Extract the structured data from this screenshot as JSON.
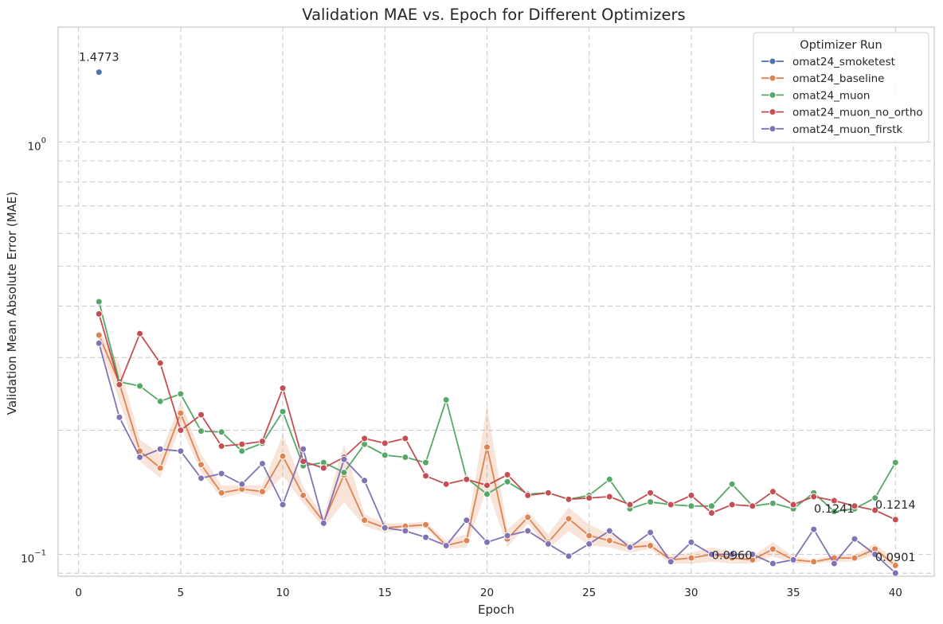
{
  "chart_data": {
    "type": "line",
    "title": "Validation MAE vs. Epoch for Different Optimizers",
    "xlabel": "Epoch",
    "ylabel": "Validation Mean Absolute Error (MAE)",
    "xlim": [
      -1,
      41.9
    ],
    "ylim": [
      0.0885,
      1.9
    ],
    "yscale": "log",
    "grid": true,
    "x_ticks": [
      0,
      5,
      10,
      15,
      20,
      25,
      30,
      35,
      40
    ],
    "y_major_ticks": [
      {
        "value": 0.1,
        "base": "10",
        "exp": "−1"
      },
      {
        "value": 1,
        "base": "10",
        "exp": "0"
      }
    ],
    "y_minor_grid": [
      0.09,
      0.2,
      0.3,
      0.4,
      0.5,
      0.6,
      0.7,
      0.8,
      0.9
    ],
    "legend": {
      "title": "Optimizer Run",
      "position": "top-right"
    },
    "series": [
      {
        "name": "omat24_smoketest",
        "color": "#4c72b0",
        "x": [
          1
        ],
        "y": [
          1.4773
        ]
      },
      {
        "name": "omat24_baseline",
        "color": "#dd8452",
        "x": [
          1,
          2,
          3,
          4,
          5,
          6,
          7,
          8,
          9,
          10,
          11,
          12,
          13,
          14,
          15,
          16,
          17,
          18,
          19,
          20,
          21,
          22,
          23,
          24,
          25,
          26,
          27,
          28,
          29,
          30,
          31,
          32,
          33,
          34,
          35,
          36,
          37,
          38,
          39,
          40
        ],
        "y": [
          0.34,
          0.26,
          0.178,
          0.162,
          0.22,
          0.165,
          0.141,
          0.144,
          0.142,
          0.173,
          0.139,
          0.12,
          0.156,
          0.121,
          0.116,
          0.117,
          0.118,
          0.105,
          0.108,
          0.182,
          0.109,
          0.123,
          0.107,
          0.122,
          0.111,
          0.108,
          0.104,
          0.105,
          0.097,
          0.098,
          0.1,
          0.098,
          0.097,
          0.103,
          0.097,
          0.096,
          0.098,
          0.098,
          0.103,
          0.094
        ],
        "band_upper": [
          0.35,
          0.29,
          0.19,
          0.175,
          0.235,
          0.175,
          0.147,
          0.147,
          0.147,
          0.195,
          0.146,
          0.124,
          0.185,
          0.125,
          0.119,
          0.119,
          0.12,
          0.108,
          0.112,
          0.23,
          0.115,
          0.127,
          0.112,
          0.13,
          0.118,
          0.112,
          0.107,
          0.108,
          0.099,
          0.101,
          0.104,
          0.101,
          0.099,
          0.107,
          0.099,
          0.097,
          0.1,
          0.1,
          0.106,
          0.097
        ],
        "band_lower": [
          0.325,
          0.235,
          0.168,
          0.153,
          0.205,
          0.158,
          0.137,
          0.141,
          0.138,
          0.155,
          0.133,
          0.116,
          0.134,
          0.117,
          0.113,
          0.115,
          0.116,
          0.103,
          0.104,
          0.145,
          0.104,
          0.119,
          0.103,
          0.114,
          0.105,
          0.104,
          0.101,
          0.103,
          0.095,
          0.095,
          0.096,
          0.095,
          0.095,
          0.099,
          0.095,
          0.095,
          0.096,
          0.096,
          0.1,
          0.092
        ]
      },
      {
        "name": "omat24_muon",
        "color": "#55a868",
        "x": [
          1,
          2,
          3,
          4,
          5,
          6,
          7,
          8,
          9,
          10,
          11,
          12,
          13,
          14,
          15,
          16,
          17,
          18,
          19,
          20,
          21,
          22,
          23,
          24,
          25,
          26,
          27,
          28,
          29,
          30,
          31,
          32,
          33,
          34,
          35,
          36,
          37,
          38,
          39,
          40
        ],
        "y": [
          0.41,
          0.262,
          0.256,
          0.235,
          0.245,
          0.199,
          0.198,
          0.178,
          0.186,
          0.222,
          0.164,
          0.167,
          0.158,
          0.185,
          0.174,
          0.172,
          0.167,
          0.237,
          0.153,
          0.14,
          0.15,
          0.14,
          0.141,
          0.136,
          0.139,
          0.152,
          0.129,
          0.134,
          0.132,
          0.131,
          0.131,
          0.148,
          0.131,
          0.133,
          0.129,
          0.141,
          0.127,
          0.129,
          0.137,
          0.167
        ]
      },
      {
        "name": "omat24_muon_no_ortho",
        "color": "#c44e52",
        "x": [
          1,
          2,
          3,
          4,
          5,
          6,
          7,
          8,
          9,
          10,
          11,
          12,
          13,
          14,
          15,
          16,
          17,
          18,
          19,
          20,
          21,
          22,
          23,
          24,
          25,
          26,
          27,
          28,
          29,
          30,
          31,
          32,
          33,
          34,
          35,
          36,
          37,
          38,
          39,
          40
        ],
        "y": [
          0.383,
          0.258,
          0.343,
          0.291,
          0.2,
          0.218,
          0.183,
          0.185,
          0.188,
          0.253,
          0.168,
          0.162,
          0.172,
          0.191,
          0.186,
          0.191,
          0.155,
          0.148,
          0.152,
          0.147,
          0.156,
          0.139,
          0.141,
          0.136,
          0.137,
          0.138,
          0.132,
          0.141,
          0.132,
          0.139,
          0.126,
          0.132,
          0.131,
          0.142,
          0.132,
          0.138,
          0.135,
          0.131,
          0.128,
          0.1214
        ]
      },
      {
        "name": "omat24_muon_firstk",
        "color": "#8172b3",
        "x": [
          1,
          2,
          3,
          4,
          5,
          6,
          7,
          8,
          9,
          10,
          11,
          12,
          13,
          14,
          15,
          16,
          17,
          18,
          19,
          20,
          21,
          22,
          23,
          24,
          25,
          26,
          27,
          28,
          29,
          30,
          31,
          32,
          33,
          34,
          35,
          36,
          37,
          38,
          39,
          40
        ],
        "y": [
          0.325,
          0.215,
          0.172,
          0.18,
          0.178,
          0.153,
          0.157,
          0.148,
          0.166,
          0.132,
          0.18,
          0.119,
          0.17,
          0.151,
          0.116,
          0.114,
          0.11,
          0.105,
          0.121,
          0.107,
          0.111,
          0.114,
          0.106,
          0.099,
          0.106,
          0.114,
          0.104,
          0.113,
          0.096,
          0.107,
          0.1,
          0.1,
          0.1,
          0.095,
          0.097,
          0.115,
          0.095,
          0.109,
          0.1,
          0.0901
        ]
      }
    ],
    "annotations": [
      {
        "text": "1.4773",
        "x": 1,
        "y": 1.4773,
        "anchor": "middle",
        "dx": 0,
        "dy": -14
      },
      {
        "text": "0.1241",
        "x": 37,
        "y": 0.1241,
        "anchor": "middle",
        "dx": 0,
        "dy": -4
      },
      {
        "text": "0.1214",
        "x": 40,
        "y": 0.1214,
        "anchor": "middle",
        "dx": 0,
        "dy": -14
      },
      {
        "text": "0.0960",
        "x": 32,
        "y": 0.096,
        "anchor": "middle",
        "dx": 0,
        "dy": -3
      },
      {
        "text": "0.0901",
        "x": 40,
        "y": 0.0901,
        "anchor": "middle",
        "dx": 0,
        "dy": -15
      }
    ]
  }
}
